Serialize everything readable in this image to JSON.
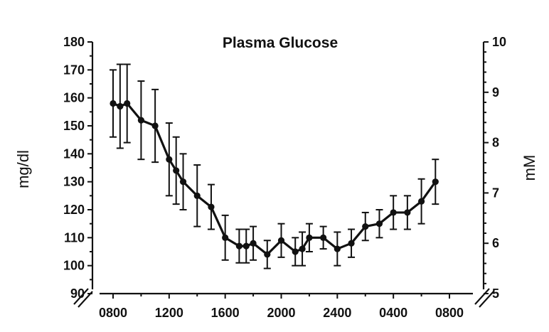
{
  "chart_data": {
    "type": "line",
    "title": "Plasma Glucose",
    "ylabel": "mg/dl",
    "y2label": "mM",
    "ylim": [
      90,
      180
    ],
    "y2lim": [
      5,
      10
    ],
    "y_ticks": [
      "90",
      "100",
      "110",
      "120",
      "130",
      "140",
      "150",
      "160",
      "170",
      "180"
    ],
    "y2_ticks": [
      "5",
      "6",
      "7",
      "8",
      "9",
      "10"
    ],
    "x_ticks": [
      "0800",
      "1200",
      "1600",
      "2000",
      "2400",
      "0400",
      "0800"
    ],
    "x_tick_hours": [
      8,
      12,
      16,
      20,
      24,
      28,
      32
    ],
    "axis_breaks": true,
    "grid": false,
    "series": [
      {
        "x": [
          8,
          8.5,
          9,
          10,
          11,
          12,
          12.5,
          13,
          14,
          15,
          16,
          17,
          17.5,
          18,
          19,
          20,
          21,
          21.5,
          22,
          23,
          24,
          25,
          26,
          27,
          28,
          29,
          30,
          31
        ],
        "values": [
          158,
          157,
          158,
          152,
          150,
          138,
          134,
          130,
          125,
          121,
          110,
          107,
          107,
          108,
          104,
          109,
          105,
          106,
          110,
          110,
          106,
          108,
          114,
          115,
          119,
          119,
          123,
          130
        ],
        "errors": [
          12,
          15,
          14,
          14,
          13,
          13,
          12,
          10,
          11,
          8,
          8,
          6,
          6,
          6,
          5,
          6,
          5,
          6,
          5,
          4,
          6,
          5,
          5,
          5,
          6,
          6,
          8,
          8
        ]
      }
    ]
  }
}
